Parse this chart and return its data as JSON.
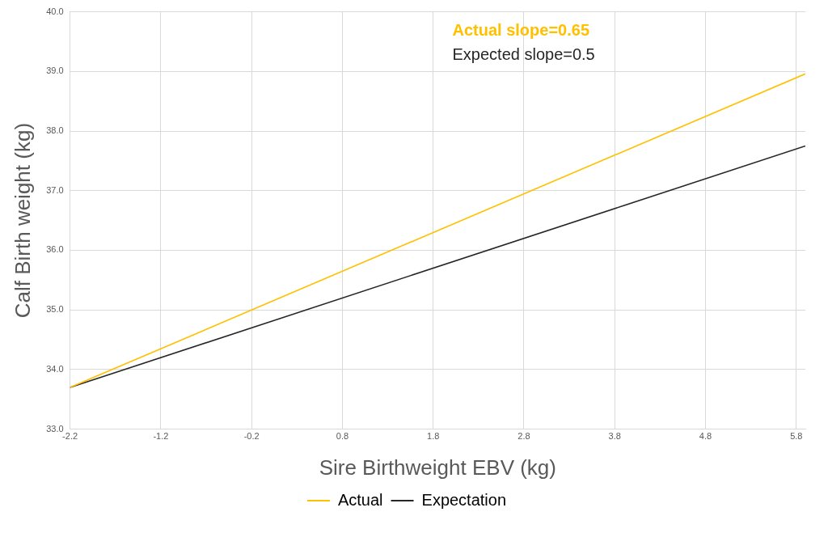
{
  "chart_data": {
    "type": "line",
    "xlabel": "Sire Birthweight EBV (kg)",
    "ylabel": "Calf Birth weight (kg)",
    "x": [
      -2.2,
      5.9
    ],
    "series": [
      {
        "name": "Actual",
        "color": "#ffc000",
        "values": [
          33.7,
          38.96
        ]
      },
      {
        "name": "Expectation",
        "color": "#262626",
        "values": [
          33.7,
          37.75
        ]
      }
    ],
    "xlim": [
      -2.2,
      5.9
    ],
    "xticks": [
      -2.2,
      -1.2,
      -0.2,
      0.8,
      1.8,
      2.8,
      3.8,
      4.8,
      5.8
    ],
    "ylim": [
      33,
      40
    ],
    "yticks": [
      {
        "value": 33,
        "label": "33.0"
      },
      {
        "value": 34,
        "label": "34.0"
      },
      {
        "value": 35,
        "label": "35.0"
      },
      {
        "value": 36,
        "label": "36.0"
      },
      {
        "value": 37,
        "label": "37.0"
      },
      {
        "value": 38,
        "label": "38.0"
      },
      {
        "value": 39,
        "label": "39.0"
      },
      {
        "value": 40,
        "label": "40.0"
      }
    ],
    "annotations": [
      "Actual slope=0.65",
      "Expected slope=0.5"
    ],
    "grid": true,
    "legend": "bottom",
    "marker": "none",
    "line_style": "solid"
  }
}
